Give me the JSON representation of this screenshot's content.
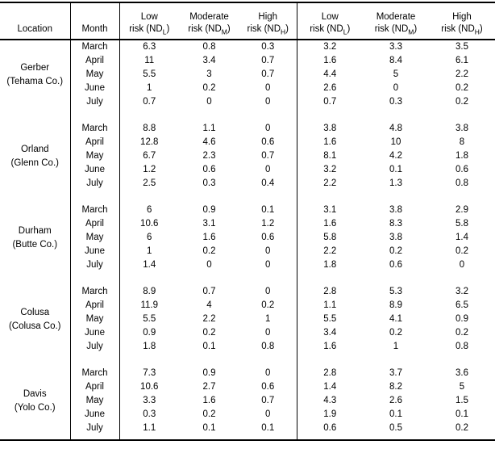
{
  "table": {
    "columns": {
      "location_label": "Location",
      "month_label": "Month",
      "risk_headers": [
        {
          "level": "Low",
          "pre": "risk (ND",
          "sub": "L",
          "post": ")"
        },
        {
          "level": "Moderate",
          "pre": "risk (ND",
          "sub": "M",
          "post": ")"
        },
        {
          "level": "High",
          "pre": "risk (ND",
          "sub": "H",
          "post": ")"
        },
        {
          "level": "Low",
          "pre": "risk (ND",
          "sub": "L",
          "post": ")"
        },
        {
          "level": "Moderate",
          "pre": "risk (ND",
          "sub": "M",
          "post": ")"
        },
        {
          "level": "High",
          "pre": "risk (ND",
          "sub": "H",
          "post": ")"
        }
      ]
    },
    "locations": [
      {
        "name": "Gerber",
        "county": "(Tehama Co.)",
        "rows": [
          {
            "month": "March",
            "values": [
              "6.3",
              "0.8",
              "0.3",
              "3.2",
              "3.3",
              "3.5"
            ]
          },
          {
            "month": "April",
            "values": [
              "11",
              "3.4",
              "0.7",
              "1.6",
              "8.4",
              "6.1"
            ]
          },
          {
            "month": "May",
            "values": [
              "5.5",
              "3",
              "0.7",
              "4.4",
              "5",
              "2.2"
            ]
          },
          {
            "month": "June",
            "values": [
              "1",
              "0.2",
              "0",
              "2.6",
              "0",
              "0.2"
            ]
          },
          {
            "month": "July",
            "values": [
              "0.7",
              "0",
              "0",
              "0.7",
              "0.3",
              "0.2"
            ]
          }
        ]
      },
      {
        "name": "Orland",
        "county": "(Glenn Co.)",
        "rows": [
          {
            "month": "March",
            "values": [
              "8.8",
              "1.1",
              "0",
              "3.8",
              "4.8",
              "3.8"
            ]
          },
          {
            "month": "April",
            "values": [
              "12.8",
              "4.6",
              "0.6",
              "1.6",
              "10",
              "8"
            ]
          },
          {
            "month": "May",
            "values": [
              "6.7",
              "2.3",
              "0.7",
              "8.1",
              "4.2",
              "1.8"
            ]
          },
          {
            "month": "June",
            "values": [
              "1.2",
              "0.6",
              "0",
              "3.2",
              "0.1",
              "0.6"
            ]
          },
          {
            "month": "July",
            "values": [
              "2.5",
              "0.3",
              "0.4",
              "2.2",
              "1.3",
              "0.8"
            ]
          }
        ]
      },
      {
        "name": "Durham",
        "county": "(Butte Co.)",
        "rows": [
          {
            "month": "March",
            "values": [
              "6",
              "0.9",
              "0.1",
              "3.1",
              "3.8",
              "2.9"
            ]
          },
          {
            "month": "April",
            "values": [
              "10.6",
              "3.1",
              "1.2",
              "1.6",
              "8.3",
              "5.8"
            ]
          },
          {
            "month": "May",
            "values": [
              "6",
              "1.6",
              "0.6",
              "5.8",
              "3.8",
              "1.4"
            ]
          },
          {
            "month": "June",
            "values": [
              "1",
              "0.2",
              "0",
              "2.2",
              "0.2",
              "0.2"
            ]
          },
          {
            "month": "July",
            "values": [
              "1.4",
              "0",
              "0",
              "1.8",
              "0.6",
              "0"
            ]
          }
        ]
      },
      {
        "name": "Colusa",
        "county": "(Colusa Co.)",
        "rows": [
          {
            "month": "March",
            "values": [
              "8.9",
              "0.7",
              "0",
              "2.8",
              "5.3",
              "3.2"
            ]
          },
          {
            "month": "April",
            "values": [
              "11.9",
              "4",
              "0.2",
              "1.1",
              "8.9",
              "6.5"
            ]
          },
          {
            "month": "May",
            "values": [
              "5.5",
              "2.2",
              "1",
              "5.5",
              "4.1",
              "0.9"
            ]
          },
          {
            "month": "June",
            "values": [
              "0.9",
              "0.2",
              "0",
              "3.4",
              "0.2",
              "0.2"
            ]
          },
          {
            "month": "July",
            "values": [
              "1.8",
              "0.1",
              "0.8",
              "1.6",
              "1",
              "0.8"
            ]
          }
        ]
      },
      {
        "name": "Davis",
        "county": "(Yolo Co.)",
        "rows": [
          {
            "month": "March",
            "values": [
              "7.3",
              "0.9",
              "0",
              "2.8",
              "3.7",
              "3.6"
            ]
          },
          {
            "month": "April",
            "values": [
              "10.6",
              "2.7",
              "0.6",
              "1.4",
              "8.2",
              "5"
            ]
          },
          {
            "month": "May",
            "values": [
              "3.3",
              "1.6",
              "0.7",
              "4.3",
              "2.6",
              "1.5"
            ]
          },
          {
            "month": "June",
            "values": [
              "0.3",
              "0.2",
              "0",
              "1.9",
              "0.1",
              "0.1"
            ]
          },
          {
            "month": "July",
            "values": [
              "1.1",
              "0.1",
              "0.1",
              "0.6",
              "0.5",
              "0.2"
            ]
          }
        ]
      }
    ]
  }
}
